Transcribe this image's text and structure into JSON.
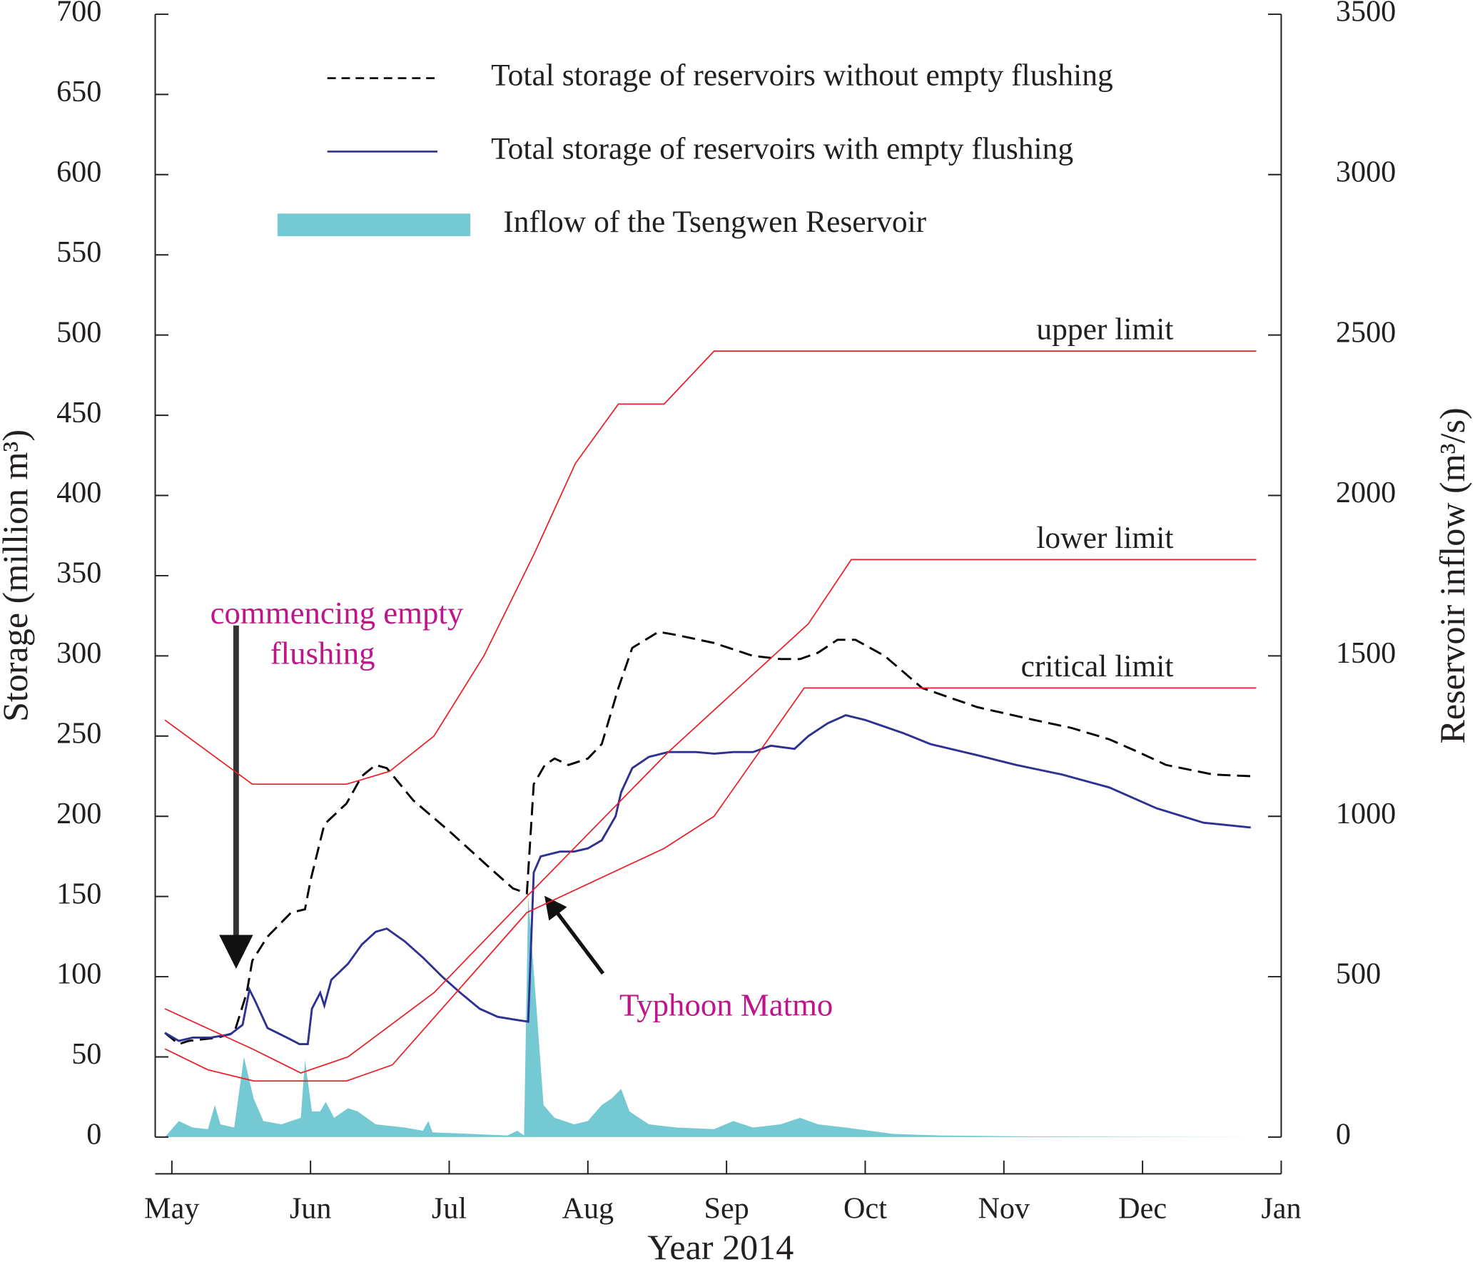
{
  "chart_data": {
    "type": "line",
    "x_label": "Year 2014",
    "y_label": "Storage (million m³)",
    "y2_label": "Reservoir inflow (m³/s)",
    "xlim": [
      -0.12,
      8
    ],
    "xticks": [
      {
        "value": 0,
        "label": "May"
      },
      {
        "value": 1,
        "label": "Jun"
      },
      {
        "value": 2,
        "label": "Jul"
      },
      {
        "value": 3,
        "label": "Aug"
      },
      {
        "value": 4,
        "label": "Sep"
      },
      {
        "value": 5,
        "label": "Oct"
      },
      {
        "value": 6,
        "label": "Nov"
      },
      {
        "value": 7,
        "label": "Dec"
      },
      {
        "value": 8,
        "label": "Jan"
      }
    ],
    "ylim": [
      0,
      700
    ],
    "yticks": [
      0,
      50,
      100,
      150,
      200,
      250,
      300,
      350,
      400,
      450,
      500,
      550,
      600,
      650,
      700
    ],
    "y2lim": [
      0,
      3500
    ],
    "y2ticks": [
      0,
      500,
      1000,
      1500,
      2000,
      2500,
      3000,
      3500
    ],
    "series": [
      {
        "name": "Total storage of reservoirs without empty flushing",
        "color": "#000000",
        "style": "dashed",
        "x": [
          -0.05,
          0.05,
          0.12,
          0.33,
          0.45,
          0.54,
          0.58,
          0.69,
          0.86,
          0.96,
          1.0,
          1.1,
          1.26,
          1.37,
          1.47,
          1.55,
          1.74,
          2.01,
          2.29,
          2.46,
          2.56,
          2.61,
          2.69,
          2.76,
          2.86,
          3.0,
          3.1,
          3.22,
          3.32,
          3.51,
          3.64,
          3.91,
          4.19,
          4.39,
          4.53,
          4.66,
          4.8,
          4.93,
          5.14,
          5.41,
          5.81,
          6.22,
          6.49,
          6.76,
          6.97,
          7.17,
          7.51,
          7.78
        ],
        "values": [
          65,
          58,
          60,
          62,
          65,
          90,
          110,
          125,
          140,
          142,
          160,
          195,
          208,
          225,
          232,
          230,
          210,
          190,
          168,
          155,
          152,
          220,
          232,
          236,
          232,
          236,
          245,
          280,
          305,
          315,
          313,
          308,
          300,
          298,
          298,
          302,
          310,
          310,
          300,
          280,
          268,
          260,
          255,
          248,
          240,
          232,
          226,
          225
        ]
      },
      {
        "name": "Total storage of reservoirs with empty flushing",
        "color": "#2e3192",
        "style": "solid",
        "x": [
          -0.05,
          0.05,
          0.15,
          0.28,
          0.42,
          0.51,
          0.56,
          0.6,
          0.69,
          0.83,
          0.92,
          0.98,
          1.01,
          1.07,
          1.1,
          1.15,
          1.27,
          1.37,
          1.47,
          1.55,
          1.68,
          1.81,
          1.95,
          2.08,
          2.22,
          2.35,
          2.49,
          2.57,
          2.61,
          2.66,
          2.8,
          2.9,
          3.0,
          3.1,
          3.2,
          3.24,
          3.32,
          3.44,
          3.58,
          3.78,
          3.91,
          4.05,
          4.19,
          4.32,
          4.49,
          4.59,
          4.73,
          4.86,
          5.0,
          5.27,
          5.47,
          5.81,
          6.09,
          6.42,
          6.76,
          7.1,
          7.44,
          7.78
        ],
        "values": [
          65,
          60,
          62,
          62,
          64,
          70,
          92,
          85,
          68,
          62,
          58,
          58,
          80,
          90,
          82,
          98,
          108,
          120,
          128,
          130,
          122,
          112,
          100,
          90,
          80,
          75,
          73,
          72,
          165,
          175,
          178,
          178,
          180,
          185,
          200,
          215,
          230,
          237,
          240,
          240,
          239,
          240,
          240,
          244,
          242,
          250,
          258,
          263,
          260,
          252,
          245,
          238,
          232,
          226,
          218,
          205,
          196,
          193
        ]
      },
      {
        "name": "Inflow of the Tsengwen Reservoir",
        "color": "#74c9d3",
        "style": "area",
        "axis": "y2",
        "x": [
          -0.05,
          0.05,
          0.15,
          0.26,
          0.31,
          0.35,
          0.45,
          0.52,
          0.59,
          0.66,
          0.79,
          0.93,
          0.96,
          1.01,
          1.07,
          1.11,
          1.17,
          1.27,
          1.34,
          1.47,
          1.68,
          1.81,
          1.85,
          1.88,
          2.15,
          2.42,
          2.49,
          2.54,
          2.57,
          2.63,
          2.68,
          2.76,
          2.9,
          3.0,
          3.1,
          3.17,
          3.24,
          3.3,
          3.44,
          3.64,
          3.91,
          4.05,
          4.19,
          4.39,
          4.53,
          4.66,
          4.86,
          5.2,
          5.54,
          6.22,
          7.85
        ],
        "values": [
          0,
          50,
          30,
          25,
          100,
          40,
          30,
          250,
          120,
          50,
          40,
          60,
          240,
          80,
          80,
          110,
          60,
          90,
          80,
          40,
          30,
          20,
          50,
          15,
          10,
          5,
          20,
          5,
          750,
          400,
          100,
          60,
          40,
          50,
          100,
          120,
          150,
          80,
          40,
          30,
          25,
          50,
          30,
          40,
          60,
          40,
          30,
          10,
          5,
          2,
          0
        ]
      }
    ],
    "limit_lines": [
      {
        "name": "upper limit",
        "color": "#ed1c24",
        "x": [
          -0.05,
          0.58,
          1.26,
          1.57,
          1.89,
          2.25,
          2.61,
          2.91,
          3.22,
          3.55,
          3.91,
          7.82
        ],
        "values": [
          260,
          220,
          220,
          228,
          250,
          300,
          363,
          420,
          457,
          457,
          490,
          490
        ]
      },
      {
        "name": "lower limit",
        "color": "#ed1c24",
        "x": [
          -0.05,
          0.58,
          0.93,
          1.27,
          1.89,
          2.56,
          3.58,
          4.59,
          4.9,
          7.82
        ],
        "values": [
          80,
          55,
          40,
          50,
          90,
          150,
          240,
          320,
          360,
          360
        ]
      },
      {
        "name": "critical limit",
        "color": "#ed1c24",
        "x": [
          -0.05,
          0.26,
          0.59,
          1.26,
          1.59,
          2.56,
          3.55,
          3.91,
          4.56,
          7.82
        ],
        "values": [
          55,
          42,
          35,
          35,
          45,
          140,
          180,
          200,
          280,
          280
        ]
      }
    ],
    "annotations": [
      "commencing empty",
      "flushing",
      "Typhoon Matmo"
    ]
  }
}
